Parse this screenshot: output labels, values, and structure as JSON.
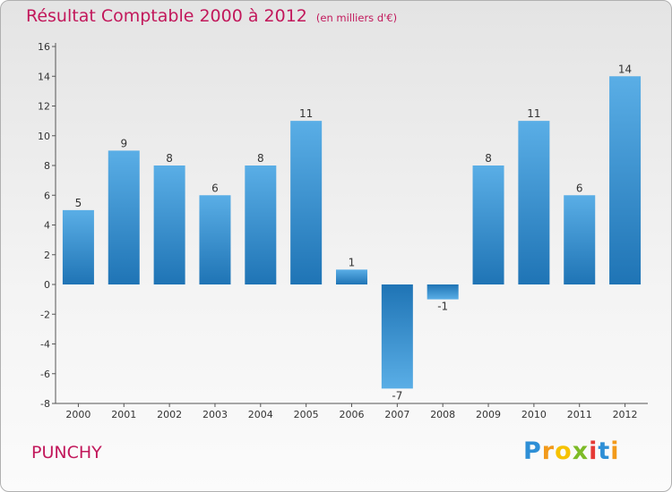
{
  "title": "Résultat Comptable 2000 à 2012",
  "subtitle": "(en milliers d'€)",
  "commune": "PUNCHY",
  "brand": {
    "name": "Proxiti",
    "letters": [
      "P",
      "r",
      "o",
      "x",
      "i",
      "t",
      "i"
    ]
  },
  "colors": {
    "title": "#c2185b",
    "bar_light": "#5aaee6",
    "bar_dark": "#1f74b5"
  },
  "chart_data": {
    "type": "bar",
    "title": "Résultat Comptable 2000 à 2012",
    "subtitle": "(en milliers d'€)",
    "xlabel": "",
    "ylabel": "",
    "categories": [
      "2000",
      "2001",
      "2002",
      "2003",
      "2004",
      "2005",
      "2006",
      "2007",
      "2008",
      "2009",
      "2010",
      "2011",
      "2012"
    ],
    "values": [
      5,
      9,
      8,
      6,
      8,
      11,
      1,
      -7,
      -1,
      8,
      11,
      6,
      14
    ],
    "ylim": [
      -8,
      16
    ],
    "yticks": [
      -8,
      -6,
      -4,
      -2,
      0,
      2,
      4,
      6,
      8,
      10,
      12,
      14,
      16
    ],
    "grid": false,
    "legend": "none"
  }
}
